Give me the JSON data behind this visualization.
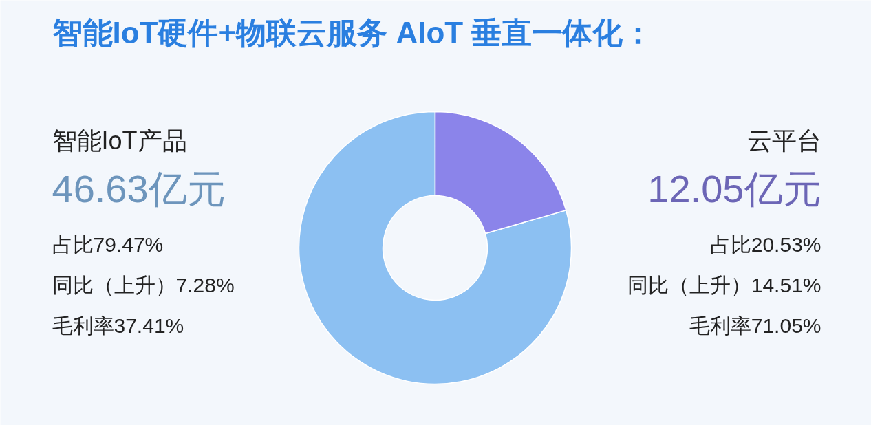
{
  "chart_data": {
    "type": "donut",
    "title": "智能IoT硬件+物联云服务 AIoT 垂直一体化：",
    "categories": [
      "智能IoT产品",
      "云平台"
    ],
    "values": [
      46.63,
      12.05
    ],
    "colors": [
      "#8cc0f2",
      "#8b84ea"
    ],
    "value_labels": [
      "46.63亿元",
      "12.05亿元"
    ],
    "annotations": [
      "占比79.47%",
      "同比（上升）7.28%",
      "毛利率37.41%",
      "占比20.53%",
      "同比（上升）14.51%",
      "毛利率71.05%"
    ]
  }
}
